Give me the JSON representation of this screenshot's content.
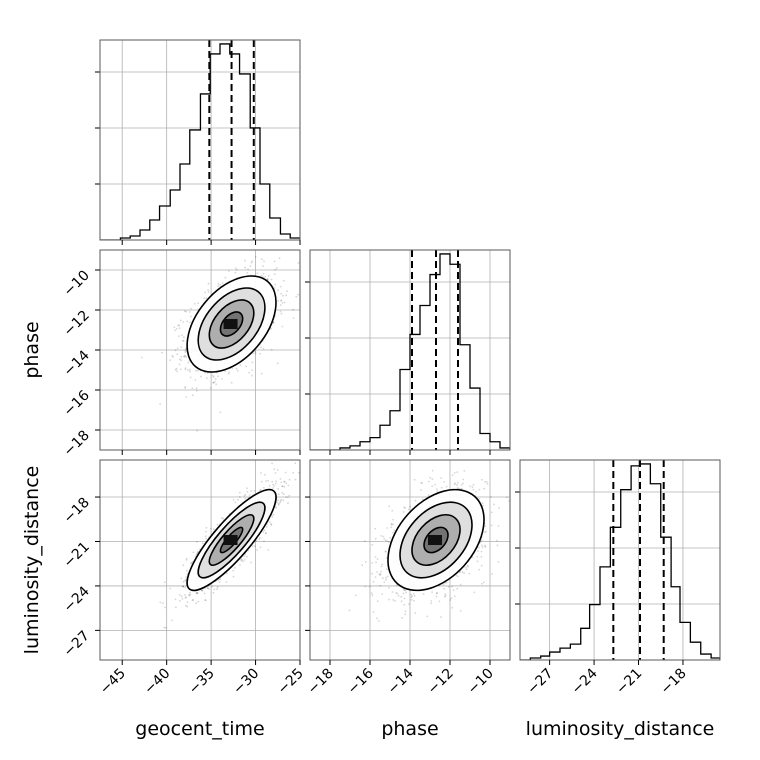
{
  "chart_data": {
    "type": "corner",
    "params": [
      "geocent_time",
      "phase",
      "luminosity_distance"
    ],
    "labels": {
      "x": [
        "geocent_time",
        "phase",
        "luminosity_distance"
      ],
      "y": [
        "",
        "phase",
        "luminosity_distance"
      ]
    },
    "ranges": {
      "geocent_time": [
        -47.5,
        -25
      ],
      "phase": [
        -19,
        -9
      ],
      "luminosity_distance": [
        -29,
        -15.5
      ]
    },
    "ticks": {
      "geocent_time": [
        -45,
        -40,
        -35,
        -30,
        -25
      ],
      "phase": [
        -18,
        -16,
        -14,
        -12,
        -10
      ],
      "luminosity_distance": [
        -27,
        -24,
        -21,
        -18
      ]
    },
    "quantiles": {
      "geocent_time": [
        -35.2,
        -32.7,
        -30.2
      ],
      "phase": [
        -13.9,
        -12.7,
        -11.6
      ],
      "luminosity_distance": [
        -22.7,
        -20.9,
        -19.3
      ]
    },
    "histograms": {
      "geocent_time": {
        "edges": [
          -47.5,
          -46.4,
          -45.2,
          -44.1,
          -43.0,
          -41.9,
          -40.8,
          -39.6,
          -38.5,
          -37.4,
          -36.2,
          -35.1,
          -34.0,
          -32.9,
          -31.8,
          -30.6,
          -29.5,
          -28.4,
          -27.2,
          -26.1,
          -25.0
        ],
        "counts": [
          0,
          0,
          1,
          2,
          5,
          10,
          17,
          25,
          38,
          55,
          73,
          93,
          98,
          93,
          83,
          56,
          28,
          11,
          3,
          1
        ]
      },
      "phase": {
        "edges": [
          -19.0,
          -18.5,
          -18.0,
          -17.5,
          -17.0,
          -16.5,
          -16.0,
          -15.5,
          -15.0,
          -14.5,
          -14.0,
          -13.5,
          -13.0,
          -12.5,
          -12.0,
          -11.5,
          -11.0,
          -10.5,
          -10.0,
          -9.5,
          -9.0
        ],
        "counts": [
          0,
          0,
          0,
          1,
          2,
          4,
          6,
          12,
          19,
          39,
          56,
          70,
          85,
          95,
          90,
          51,
          30,
          8,
          4,
          1
        ]
      },
      "luminosity_distance": {
        "edges": [
          -29.0,
          -28.3,
          -27.6,
          -27.0,
          -26.3,
          -25.6,
          -24.9,
          -24.3,
          -23.6,
          -22.9,
          -22.2,
          -21.5,
          -20.9,
          -20.2,
          -19.5,
          -18.8,
          -18.2,
          -17.5,
          -16.8,
          -16.1,
          -15.5
        ],
        "counts": [
          0,
          1,
          2,
          4,
          6,
          8,
          16,
          28,
          47,
          67,
          86,
          98,
          99,
          89,
          62,
          37,
          19,
          9,
          3,
          1
        ]
      }
    },
    "joint": {
      "phase|geocent_time": {
        "mean": [
          -32.7,
          -12.7
        ],
        "sd": [
          2.5,
          1.2
        ],
        "rho": 0.45
      },
      "luminosity_distance|geocent_time": {
        "mean": [
          -32.7,
          -20.9
        ],
        "sd": [
          2.5,
          1.7
        ],
        "rho": 0.85
      },
      "luminosity_distance|phase": {
        "mean": [
          -12.7,
          -20.9
        ],
        "sd": [
          1.2,
          1.7
        ],
        "rho": 0.4
      }
    },
    "contour_levels_sigma": [
      0.5,
      1.0,
      1.5,
      2.0
    ],
    "grid": true
  }
}
